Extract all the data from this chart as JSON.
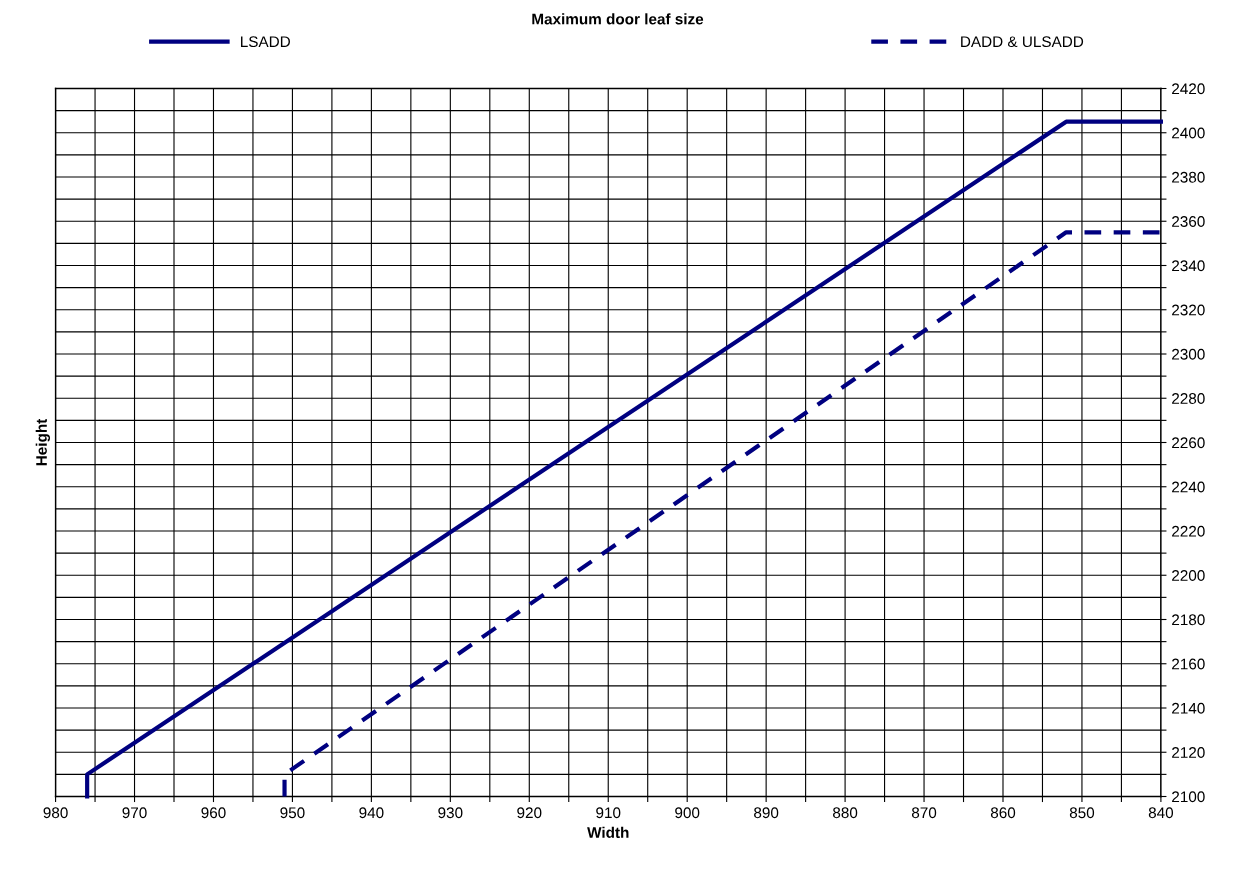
{
  "chart_data": {
    "type": "line",
    "title": "Maximum door leaf size",
    "xlabel": "Width",
    "ylabel": "Height",
    "series": [
      {
        "name": "LSADD",
        "color": "#000080",
        "line_style": "solid",
        "x": [
          976,
          976,
          852,
          840
        ],
        "values": [
          2100,
          2110,
          2405,
          2405
        ]
      },
      {
        "name": "DADD & ULSADD",
        "color": "#000080",
        "line_style": "dashed",
        "x": [
          951,
          951,
          852,
          840
        ],
        "values": [
          2100,
          2110,
          2355,
          2355
        ]
      }
    ],
    "xlim": [
      980,
      840
    ],
    "xticks": [
      980,
      {
        "value": 975,
        "label": null
      },
      970,
      {
        "value": 965,
        "label": null
      },
      960,
      {
        "value": 955,
        "label": null
      },
      950,
      {
        "value": 945,
        "label": null
      },
      940,
      {
        "value": 935,
        "label": null
      },
      930,
      {
        "value": 925,
        "label": null
      },
      920,
      {
        "value": 915,
        "label": null
      },
      910,
      {
        "value": 905,
        "label": null
      },
      900,
      {
        "value": 895,
        "label": null
      },
      890,
      {
        "value": 885,
        "label": null
      },
      880,
      {
        "value": 875,
        "label": null
      },
      870,
      {
        "value": 865,
        "label": null
      },
      860,
      {
        "value": 855,
        "label": null
      },
      850,
      {
        "value": 845,
        "label": null
      },
      840
    ],
    "ylim": [
      2100,
      2420
    ],
    "yticks": [
      2100,
      {
        "value": 2110,
        "label": null
      },
      2120,
      {
        "value": 2130,
        "label": null
      },
      2140,
      {
        "value": 2150,
        "label": null
      },
      2160,
      {
        "value": 2170,
        "label": null
      },
      2180,
      {
        "value": 2190,
        "label": null
      },
      2200,
      {
        "value": 2210,
        "label": null
      },
      2220,
      {
        "value": 2230,
        "label": null
      },
      2240,
      {
        "value": 2250,
        "label": null
      },
      2260,
      {
        "value": 2270,
        "label": null
      },
      2280,
      {
        "value": 2290,
        "label": null
      },
      2300,
      {
        "value": 2310,
        "label": null
      },
      2320,
      {
        "value": 2330,
        "label": null
      },
      2340,
      {
        "value": 2350,
        "label": null
      },
      2360,
      {
        "value": 2370,
        "label": null
      },
      2380,
      {
        "value": 2390,
        "label": null
      },
      2400,
      {
        "value": 2410,
        "label": null
      },
      2420
    ],
    "grid": true,
    "legend": "top",
    "marker": "none"
  }
}
